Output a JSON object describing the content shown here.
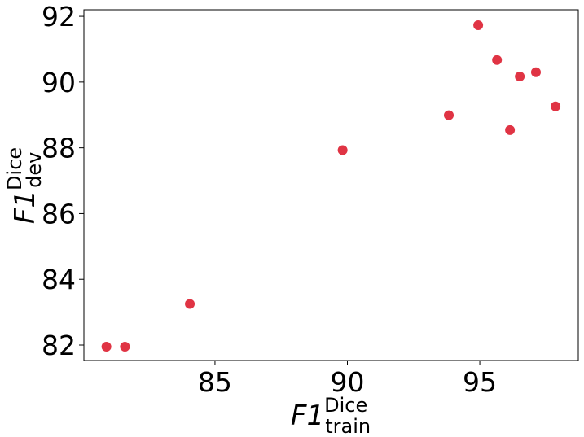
{
  "chart_data": {
    "type": "scatter",
    "x_label": {
      "base": "F1",
      "sup": "Dice",
      "sub": "train"
    },
    "y_label": {
      "base": "F1",
      "sup": "Dice",
      "sub": "dev"
    },
    "series": [
      {
        "color": "#e03444",
        "x": [
          80.9,
          81.6,
          84.05,
          89.82,
          93.83,
          94.94,
          95.65,
          96.14,
          96.51,
          97.12,
          97.86
        ],
        "values": [
          81.95,
          81.95,
          83.25,
          87.93,
          88.99,
          91.73,
          90.67,
          88.54,
          90.17,
          90.3,
          89.26
        ]
      }
    ],
    "xlim": [
      80.05,
      98.72
    ],
    "ylim": [
      81.53,
      92.2
    ],
    "xticks": [
      85,
      90,
      95
    ],
    "yticks": [
      82,
      84,
      86,
      88,
      90,
      92
    ]
  }
}
